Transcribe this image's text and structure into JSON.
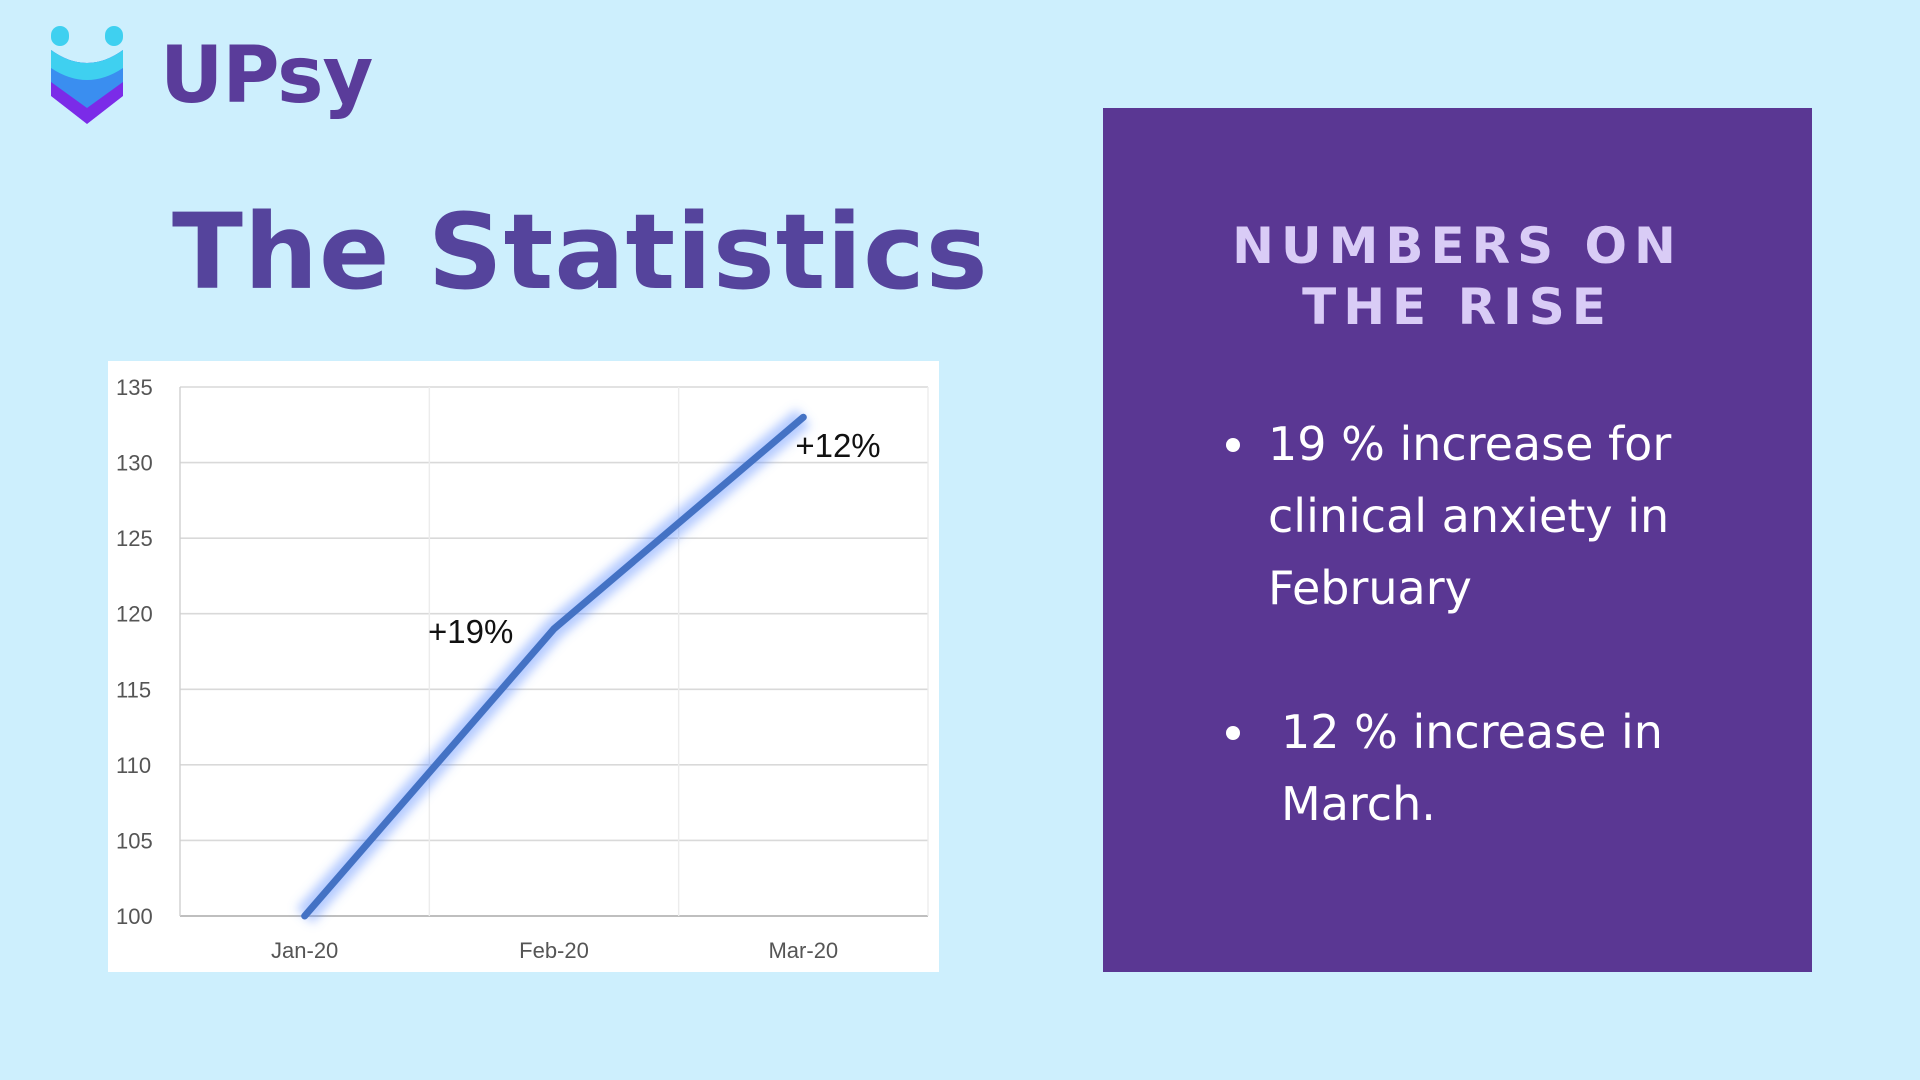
{
  "brand": {
    "name": "UPsy",
    "colors": {
      "mark_top": "#3fd0f0",
      "mark_mid": "#3a8ef0",
      "mark_bottom": "#7b2be8",
      "text": "#5a3c9a"
    }
  },
  "title": "The Statistics",
  "chart_data": {
    "type": "line",
    "categories": [
      "Jan-20",
      "Feb-20",
      "Mar-20"
    ],
    "series": [
      {
        "values": [
          100,
          119,
          133
        ],
        "color": "#4472c4"
      }
    ],
    "ylim": [
      100,
      135
    ],
    "yticks": [
      100,
      105,
      110,
      115,
      120,
      125,
      130,
      135
    ],
    "annotations": [
      {
        "category": "Feb-20",
        "text": "+19%"
      },
      {
        "category": "Mar-20",
        "text": "+12%"
      }
    ],
    "grid": true,
    "legend": "none"
  },
  "panel": {
    "heading_lines": [
      "NUMBERS ON",
      "THE RISE"
    ],
    "bullets": [
      {
        "lines": [
          "19 % increase  for",
          "clinical anxiety in",
          "February"
        ]
      },
      {
        "lines": [
          "12 % increase in",
          "March."
        ]
      }
    ]
  }
}
